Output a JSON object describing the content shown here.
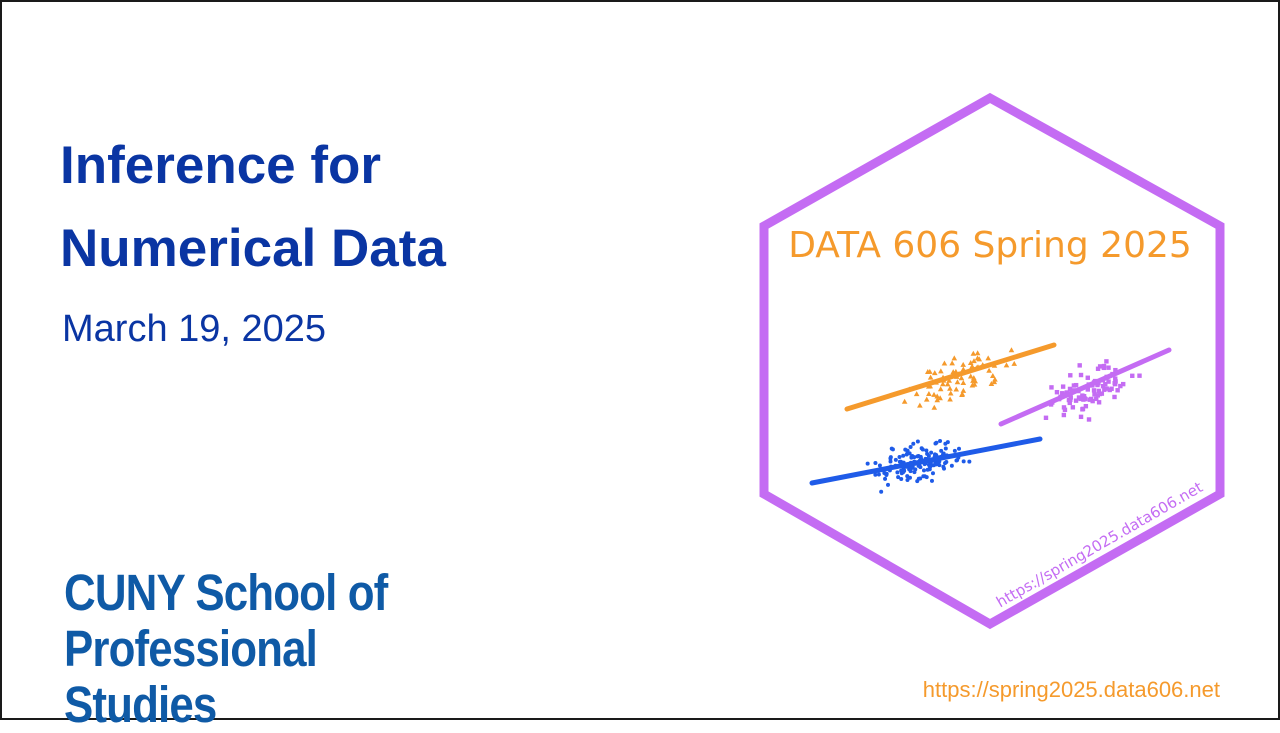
{
  "slide": {
    "title_lines": [
      "Inference for",
      "Numerical Data"
    ],
    "date": "March 19, 2025",
    "school_logo_lines": [
      "CUNY School of",
      "Professional Studies"
    ],
    "footer_url": "https://spring2025.data606.net"
  },
  "hex_sticker": {
    "title": "DATA 606 Spring 2025",
    "url": "https://spring2025.data606.net",
    "colors": {
      "border": "#c46cf3",
      "title": "#f59a2c",
      "url": "#c46cf3",
      "group_orange": "#f59a2c",
      "group_purple": "#c46cf3",
      "group_blue": "#1f5be8"
    }
  },
  "theme": {
    "title_color": "#0a35a3",
    "logo_color": "#0f5aa6",
    "footer_color": "#f59a2c"
  }
}
